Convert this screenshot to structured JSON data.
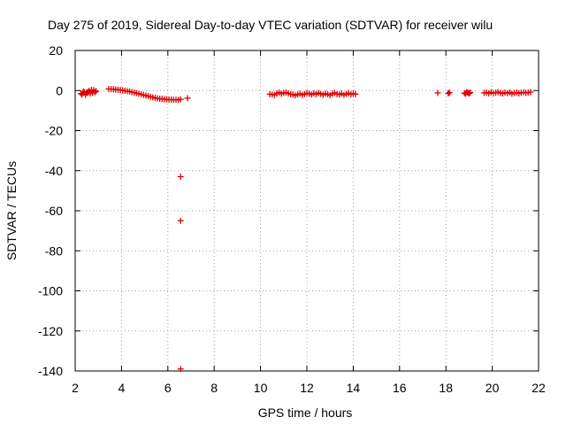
{
  "chart_data": {
    "type": "scatter",
    "title": "Day 275 of 2019, Sidereal Day-to-day VTEC variation (SDTVAR) for receiver wilu",
    "xlabel": "GPS time / hours",
    "ylabel": "SDTVAR / TECUs",
    "xlim": [
      2,
      22
    ],
    "ylim": [
      -140,
      20
    ],
    "xticks": [
      2,
      4,
      6,
      8,
      10,
      12,
      14,
      16,
      18,
      20,
      22
    ],
    "yticks": [
      20,
      0,
      -20,
      -40,
      -60,
      -80,
      -100,
      -120,
      -140
    ],
    "grid": true,
    "marker": "+",
    "color": "#e00000",
    "series": [
      {
        "x": [
          2.25,
          2.3,
          2.35,
          2.4,
          2.45,
          2.5,
          2.55,
          2.6,
          2.65,
          2.7,
          2.75,
          2.8,
          2.85,
          2.9,
          3.45,
          3.55,
          3.65,
          3.75,
          3.85,
          3.95,
          4.05,
          4.15,
          4.25,
          4.35,
          4.45,
          4.55,
          4.65,
          4.75,
          4.85,
          4.95,
          5.05,
          5.15,
          5.25,
          5.35,
          5.45,
          5.55,
          5.65,
          5.75,
          5.85,
          5.95,
          6.05,
          6.15,
          6.25,
          6.35,
          6.45,
          6.55,
          6.85,
          6.55,
          6.55,
          6.55,
          10.4,
          10.5,
          10.6,
          10.7,
          10.8,
          10.9,
          11.0,
          11.1,
          11.2,
          11.3,
          11.4,
          11.5,
          11.6,
          11.7,
          11.8,
          11.9,
          12.0,
          12.1,
          12.2,
          12.3,
          12.4,
          12.5,
          12.6,
          12.7,
          12.8,
          12.9,
          13.0,
          13.1,
          13.2,
          13.3,
          13.4,
          13.5,
          13.6,
          13.7,
          13.8,
          13.9,
          14.0,
          14.1,
          17.65,
          18.1,
          18.15,
          18.8,
          18.85,
          18.9,
          18.95,
          19.0,
          19.05,
          19.65,
          19.75,
          19.85,
          19.95,
          20.05,
          20.15,
          20.25,
          20.35,
          20.45,
          20.55,
          20.65,
          20.75,
          20.85,
          20.95,
          21.05,
          21.15,
          21.25,
          21.35,
          21.45,
          21.55,
          21.65
        ],
        "y": [
          -1.5,
          -2.0,
          -0.5,
          -1.0,
          -2.2,
          -1.0,
          -0.8,
          -0.2,
          -1.5,
          0.3,
          -1.2,
          0.2,
          -0.8,
          -0.3,
          0.8,
          0.7,
          0.7,
          0.5,
          0.4,
          0.3,
          0.1,
          -0.1,
          -0.3,
          -0.5,
          -0.8,
          -1.0,
          -1.3,
          -1.6,
          -1.9,
          -2.2,
          -2.5,
          -2.8,
          -3.1,
          -3.4,
          -3.7,
          -3.9,
          -4.1,
          -4.2,
          -4.3,
          -4.4,
          -4.5,
          -4.5,
          -4.6,
          -4.6,
          -4.7,
          -4.4,
          -3.8,
          -43,
          -65,
          -139,
          -1.8,
          -2.0,
          -2.2,
          -1.5,
          -1.0,
          -1.6,
          -1.2,
          -1.0,
          -1.4,
          -1.8,
          -2.0,
          -2.4,
          -2.0,
          -1.6,
          -2.2,
          -1.8,
          -1.3,
          -1.6,
          -2.0,
          -1.4,
          -1.8,
          -1.2,
          -1.7,
          -2.1,
          -1.5,
          -1.9,
          -2.3,
          -1.6,
          -1.2,
          -1.8,
          -2.0,
          -1.5,
          -2.2,
          -1.7,
          -1.3,
          -1.9,
          -1.5,
          -1.8,
          -1.2,
          -1.5,
          -1.0,
          -1.3,
          -1.6,
          -0.8,
          -1.1,
          -1.4,
          -1.0,
          -1.2,
          -1.0,
          -1.4,
          -0.9,
          -1.3,
          -1.1,
          -0.8,
          -1.2,
          -1.5,
          -1.0,
          -1.3,
          -0.9,
          -1.6,
          -1.2,
          -1.0,
          -1.4,
          -1.1,
          -0.9,
          -1.2,
          -1.0,
          -0.8
        ]
      }
    ]
  }
}
